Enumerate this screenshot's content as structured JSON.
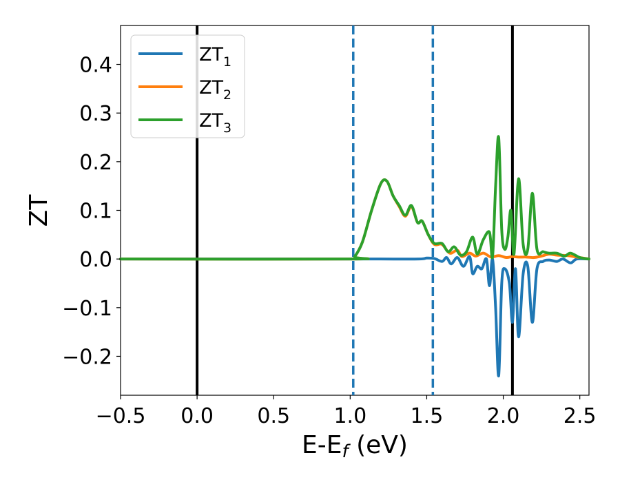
{
  "chart_data": {
    "type": "line",
    "xlabel": "E-E",
    "xlabel_sub": "f",
    "xlabel_unit": " (eV)",
    "ylabel": "ZT",
    "xlim": [
      -0.5,
      2.56
    ],
    "ylim": [
      -0.28,
      0.48
    ],
    "grid": false,
    "legend_position": "top-left",
    "xticks": [
      {
        "value": -0.5,
        "label": "−0.5"
      },
      {
        "value": 0.0,
        "label": "0.0"
      },
      {
        "value": 0.5,
        "label": "0.5"
      },
      {
        "value": 1.0,
        "label": "1.0"
      },
      {
        "value": 1.5,
        "label": "1.5"
      },
      {
        "value": 2.0,
        "label": "2.0"
      },
      {
        "value": 2.5,
        "label": "2.5"
      }
    ],
    "yticks": [
      {
        "value": -0.2,
        "label": "−0.2"
      },
      {
        "value": -0.1,
        "label": "−0.1"
      },
      {
        "value": 0.0,
        "label": "0.0"
      },
      {
        "value": 0.1,
        "label": "0.1"
      },
      {
        "value": 0.2,
        "label": "0.2"
      },
      {
        "value": 0.3,
        "label": "0.3"
      },
      {
        "value": 0.4,
        "label": "0.4"
      }
    ],
    "reference_lines": [
      {
        "x": 0.0,
        "style": "solid",
        "color": "#000000"
      },
      {
        "x": 1.02,
        "style": "dashed",
        "color": "#1f77b4"
      },
      {
        "x": 1.54,
        "style": "dashed",
        "color": "#1f77b4"
      },
      {
        "x": 2.06,
        "style": "solid",
        "color": "#000000"
      }
    ],
    "series": [
      {
        "name": "ZT",
        "name_sub": "1",
        "color": "#1f77b4",
        "points": [
          [
            -0.5,
            0
          ],
          [
            1.0,
            0
          ],
          [
            1.2,
            0
          ],
          [
            1.45,
            0
          ],
          [
            1.5,
            0.002
          ],
          [
            1.55,
            0.001
          ],
          [
            1.6,
            -0.005
          ],
          [
            1.63,
            0.003
          ],
          [
            1.66,
            -0.01
          ],
          [
            1.7,
            0.003
          ],
          [
            1.74,
            -0.015
          ],
          [
            1.78,
            0.005
          ],
          [
            1.8,
            -0.03
          ],
          [
            1.83,
            -0.015
          ],
          [
            1.86,
            -0.02
          ],
          [
            1.89,
            0.0
          ],
          [
            1.91,
            -0.055
          ],
          [
            1.93,
            0.0
          ],
          [
            1.95,
            -0.1
          ],
          [
            1.97,
            -0.24
          ],
          [
            1.99,
            -0.05
          ],
          [
            2.01,
            -0.02
          ],
          [
            2.04,
            -0.05
          ],
          [
            2.06,
            -0.13
          ],
          [
            2.08,
            -0.02
          ],
          [
            2.1,
            -0.16
          ],
          [
            2.13,
            -0.03
          ],
          [
            2.16,
            -0.015
          ],
          [
            2.19,
            -0.13
          ],
          [
            2.22,
            -0.02
          ],
          [
            2.26,
            -0.005
          ],
          [
            2.3,
            -0.002
          ],
          [
            2.35,
            -0.005
          ],
          [
            2.39,
            0.0
          ],
          [
            2.44,
            -0.008
          ],
          [
            2.48,
            0.0
          ],
          [
            2.56,
            0.0
          ]
        ]
      },
      {
        "name": "ZT",
        "name_sub": "2",
        "color": "#ff7f0e",
        "points": [
          [
            -0.5,
            0
          ],
          [
            1.0,
            0
          ],
          [
            1.03,
            0.005
          ],
          [
            1.08,
            0.035
          ],
          [
            1.14,
            0.1
          ],
          [
            1.2,
            0.155
          ],
          [
            1.24,
            0.16
          ],
          [
            1.28,
            0.13
          ],
          [
            1.32,
            0.108
          ],
          [
            1.36,
            0.088
          ],
          [
            1.4,
            0.108
          ],
          [
            1.44,
            0.075
          ],
          [
            1.47,
            0.078
          ],
          [
            1.51,
            0.05
          ],
          [
            1.55,
            0.03
          ],
          [
            1.6,
            0.03
          ],
          [
            1.65,
            0.012
          ],
          [
            1.7,
            0.018
          ],
          [
            1.73,
            0.005
          ],
          [
            1.78,
            0.012
          ],
          [
            1.82,
            0.006
          ],
          [
            1.87,
            0.012
          ],
          [
            1.92,
            0.004
          ],
          [
            1.97,
            0.007
          ],
          [
            2.02,
            0.003
          ],
          [
            2.06,
            0.005
          ],
          [
            2.1,
            0.004
          ],
          [
            2.15,
            0.004
          ],
          [
            2.2,
            0.003
          ],
          [
            2.25,
            0.006
          ],
          [
            2.3,
            0.01
          ],
          [
            2.35,
            0.008
          ],
          [
            2.42,
            0.007
          ],
          [
            2.5,
            0.003
          ],
          [
            2.56,
            0.0
          ]
        ]
      },
      {
        "name": "ZT",
        "name_sub": "3",
        "color": "#2ca02c",
        "points": [
          [
            -0.5,
            0
          ],
          [
            1.0,
            0
          ],
          [
            1.03,
            0.005
          ],
          [
            1.08,
            0.035
          ],
          [
            1.14,
            0.1
          ],
          [
            1.2,
            0.155
          ],
          [
            1.24,
            0.16
          ],
          [
            1.28,
            0.13
          ],
          [
            1.32,
            0.11
          ],
          [
            1.36,
            0.09
          ],
          [
            1.4,
            0.11
          ],
          [
            1.44,
            0.075
          ],
          [
            1.47,
            0.078
          ],
          [
            1.51,
            0.05
          ],
          [
            1.55,
            0.032
          ],
          [
            1.6,
            0.032
          ],
          [
            1.64,
            0.015
          ],
          [
            1.68,
            0.025
          ],
          [
            1.72,
            0.008
          ],
          [
            1.76,
            0.015
          ],
          [
            1.8,
            0.045
          ],
          [
            1.83,
            0.01
          ],
          [
            1.87,
            0.04
          ],
          [
            1.91,
            0.055
          ],
          [
            1.93,
            0.005
          ],
          [
            1.95,
            0.15
          ],
          [
            1.97,
            0.25
          ],
          [
            1.99,
            0.06
          ],
          [
            2.01,
            0.02
          ],
          [
            2.03,
            0.045
          ],
          [
            2.05,
            0.1
          ],
          [
            2.07,
            0.01
          ],
          [
            2.1,
            0.165
          ],
          [
            2.13,
            0.03
          ],
          [
            2.16,
            0.02
          ],
          [
            2.19,
            0.135
          ],
          [
            2.22,
            0.02
          ],
          [
            2.26,
            0.015
          ],
          [
            2.3,
            0.012
          ],
          [
            2.35,
            0.012
          ],
          [
            2.4,
            0.006
          ],
          [
            2.44,
            0.012
          ],
          [
            2.5,
            0.003
          ],
          [
            2.56,
            0.0
          ]
        ]
      }
    ]
  }
}
